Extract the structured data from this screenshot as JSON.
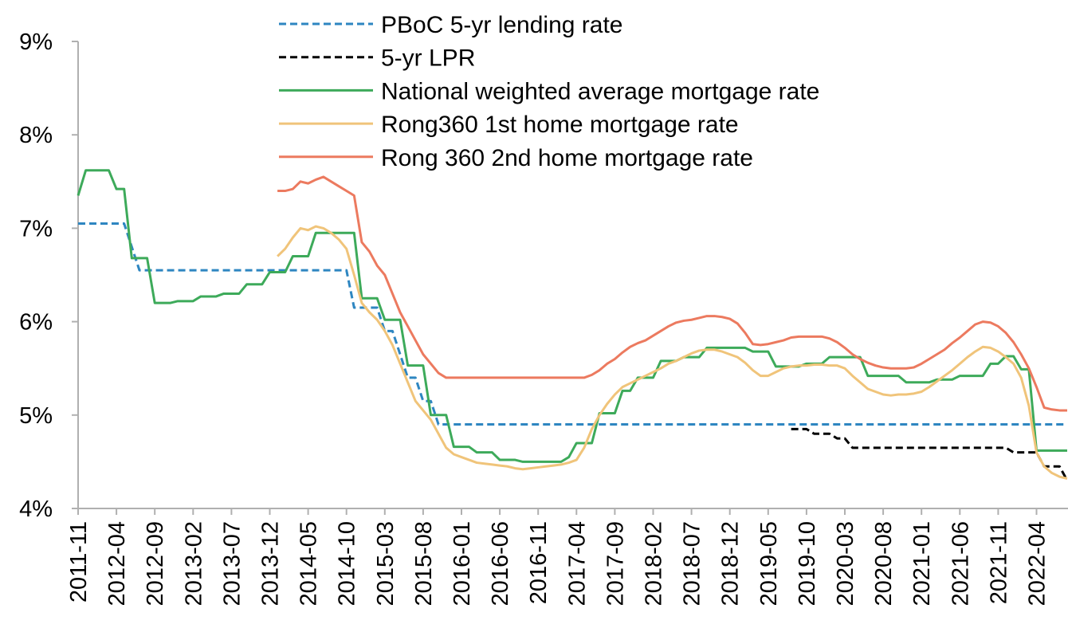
{
  "chart_data": {
    "type": "line",
    "categories": [
      "2011-11",
      null,
      null,
      null,
      null,
      "2012-04",
      null,
      null,
      null,
      null,
      "2012-09",
      null,
      null,
      null,
      null,
      "2013-02",
      null,
      null,
      null,
      null,
      "2013-07",
      null,
      null,
      null,
      null,
      "2013-12",
      null,
      null,
      null,
      null,
      "2014-05",
      null,
      null,
      null,
      null,
      "2014-10",
      null,
      null,
      null,
      null,
      "2015-03",
      null,
      null,
      null,
      null,
      "2015-08",
      null,
      null,
      null,
      null,
      "2016-01",
      null,
      null,
      null,
      null,
      "2016-06",
      null,
      null,
      null,
      null,
      "2016-11",
      null,
      null,
      null,
      null,
      "2017-04",
      null,
      null,
      null,
      null,
      "2017-09",
      null,
      null,
      null,
      null,
      "2018-02",
      null,
      null,
      null,
      null,
      "2018-07",
      null,
      null,
      null,
      null,
      "2018-12",
      null,
      null,
      null,
      null,
      "2019-05",
      null,
      null,
      null,
      null,
      "2019-10",
      null,
      null,
      null,
      null,
      "2020-03",
      null,
      null,
      null,
      null,
      "2020-08",
      null,
      null,
      null,
      null,
      "2021-01",
      null,
      null,
      null,
      null,
      "2021-06",
      null,
      null,
      null,
      null,
      "2021-11",
      null,
      null,
      null,
      null,
      "2022-04",
      null,
      null,
      null,
      null
    ],
    "ylim": [
      4,
      9
    ],
    "yticks": [
      {
        "value": 4,
        "label": "4%"
      },
      {
        "value": 5,
        "label": "5%"
      },
      {
        "value": 6,
        "label": "6%"
      },
      {
        "value": 7,
        "label": "7%"
      },
      {
        "value": 8,
        "label": "8%"
      },
      {
        "value": 9,
        "label": "9%"
      }
    ],
    "series": [
      {
        "name": "PBoC 5-yr lending rate",
        "color": "#2e86c1",
        "dashed": true,
        "values": [
          7.05,
          7.05,
          7.05,
          7.05,
          7.05,
          7.05,
          7.05,
          6.8,
          6.55,
          6.55,
          6.55,
          6.55,
          6.55,
          6.55,
          6.55,
          6.55,
          6.55,
          6.55,
          6.55,
          6.55,
          6.55,
          6.55,
          6.55,
          6.55,
          6.55,
          6.55,
          6.55,
          6.55,
          6.55,
          6.55,
          6.55,
          6.55,
          6.55,
          6.55,
          6.55,
          6.55,
          6.15,
          6.15,
          6.15,
          6.15,
          5.9,
          5.9,
          5.65,
          5.4,
          5.4,
          5.15,
          5.15,
          4.9,
          4.9,
          4.9,
          4.9,
          4.9,
          4.9,
          4.9,
          4.9,
          4.9,
          4.9,
          4.9,
          4.9,
          4.9,
          4.9,
          4.9,
          4.9,
          4.9,
          4.9,
          4.9,
          4.9,
          4.9,
          4.9,
          4.9,
          4.9,
          4.9,
          4.9,
          4.9,
          4.9,
          4.9,
          4.9,
          4.9,
          4.9,
          4.9,
          4.9,
          4.9,
          4.9,
          4.9,
          4.9,
          4.9,
          4.9,
          4.9,
          4.9,
          4.9,
          4.9,
          4.9,
          4.9,
          4.9,
          4.9,
          4.9,
          4.9,
          4.9,
          4.9,
          4.9,
          4.9,
          4.9,
          4.9,
          4.9,
          4.9,
          4.9,
          4.9,
          4.9,
          4.9,
          4.9,
          4.9,
          4.9,
          4.9,
          4.9,
          4.9,
          4.9,
          4.9,
          4.9,
          4.9,
          4.9,
          4.9,
          4.9,
          4.9,
          4.9,
          4.9,
          4.9,
          4.9,
          4.9,
          4.9,
          4.9
        ]
      },
      {
        "name": "5-yr LPR",
        "color": "#000000",
        "dashed": true,
        "values": [
          null,
          null,
          null,
          null,
          null,
          null,
          null,
          null,
          null,
          null,
          null,
          null,
          null,
          null,
          null,
          null,
          null,
          null,
          null,
          null,
          null,
          null,
          null,
          null,
          null,
          null,
          null,
          null,
          null,
          null,
          null,
          null,
          null,
          null,
          null,
          null,
          null,
          null,
          null,
          null,
          null,
          null,
          null,
          null,
          null,
          null,
          null,
          null,
          null,
          null,
          null,
          null,
          null,
          null,
          null,
          null,
          null,
          null,
          null,
          null,
          null,
          null,
          null,
          null,
          null,
          null,
          null,
          null,
          null,
          null,
          null,
          null,
          null,
          null,
          null,
          null,
          null,
          null,
          null,
          null,
          null,
          null,
          null,
          null,
          null,
          null,
          null,
          null,
          null,
          null,
          null,
          null,
          null,
          4.85,
          4.85,
          4.85,
          4.8,
          4.8,
          4.8,
          4.75,
          4.75,
          4.65,
          4.65,
          4.65,
          4.65,
          4.65,
          4.65,
          4.65,
          4.65,
          4.65,
          4.65,
          4.65,
          4.65,
          4.65,
          4.65,
          4.65,
          4.65,
          4.65,
          4.65,
          4.65,
          4.65,
          4.65,
          4.6,
          4.6,
          4.6,
          4.6,
          4.45,
          4.45,
          4.45,
          4.3
        ]
      },
      {
        "name": "National weighted average mortgage rate",
        "color": "#3daa5a",
        "dashed": false,
        "values": [
          7.35,
          7.62,
          7.62,
          7.62,
          7.62,
          7.42,
          7.42,
          6.68,
          6.68,
          6.68,
          6.2,
          6.2,
          6.2,
          6.22,
          6.22,
          6.22,
          6.27,
          6.27,
          6.27,
          6.3,
          6.3,
          6.3,
          6.4,
          6.4,
          6.4,
          6.53,
          6.53,
          6.53,
          6.7,
          6.7,
          6.7,
          6.95,
          6.95,
          6.95,
          6.95,
          6.95,
          6.95,
          6.25,
          6.25,
          6.25,
          6.02,
          6.02,
          6.02,
          5.53,
          5.53,
          5.53,
          5.0,
          5.0,
          5.0,
          4.66,
          4.66,
          4.66,
          4.6,
          4.6,
          4.6,
          4.52,
          4.52,
          4.52,
          4.5,
          4.5,
          4.5,
          4.5,
          4.5,
          4.5,
          4.55,
          4.7,
          4.7,
          4.7,
          5.02,
          5.02,
          5.02,
          5.26,
          5.26,
          5.4,
          5.4,
          5.4,
          5.58,
          5.58,
          5.58,
          5.62,
          5.62,
          5.62,
          5.72,
          5.72,
          5.72,
          5.72,
          5.72,
          5.72,
          5.68,
          5.68,
          5.68,
          5.52,
          5.52,
          5.52,
          5.52,
          5.55,
          5.55,
          5.55,
          5.62,
          5.62,
          5.62,
          5.62,
          5.62,
          5.42,
          5.42,
          5.42,
          5.42,
          5.42,
          5.35,
          5.35,
          5.35,
          5.35,
          5.38,
          5.38,
          5.38,
          5.42,
          5.42,
          5.42,
          5.42,
          5.55,
          5.55,
          5.63,
          5.63,
          5.49,
          5.49,
          4.62,
          4.62,
          4.62,
          4.62,
          4.62
        ]
      },
      {
        "name": "Rong360 1st home mortgage rate",
        "color": "#f0c47a",
        "dashed": false,
        "values": [
          null,
          null,
          null,
          null,
          null,
          null,
          null,
          null,
          null,
          null,
          null,
          null,
          null,
          null,
          null,
          null,
          null,
          null,
          null,
          null,
          null,
          null,
          null,
          null,
          null,
          null,
          6.7,
          6.78,
          6.9,
          7.0,
          6.98,
          7.02,
          7.0,
          6.95,
          6.88,
          6.78,
          6.5,
          6.2,
          6.1,
          6.02,
          5.9,
          5.75,
          5.55,
          5.35,
          5.15,
          5.05,
          4.95,
          4.8,
          4.65,
          4.58,
          4.55,
          4.52,
          4.49,
          4.48,
          4.47,
          4.46,
          4.45,
          4.43,
          4.42,
          4.43,
          4.44,
          4.45,
          4.46,
          4.47,
          4.49,
          4.52,
          4.65,
          4.85,
          5.0,
          5.12,
          5.22,
          5.3,
          5.34,
          5.38,
          5.42,
          5.46,
          5.5,
          5.55,
          5.58,
          5.62,
          5.66,
          5.69,
          5.7,
          5.7,
          5.68,
          5.65,
          5.62,
          5.56,
          5.48,
          5.42,
          5.42,
          5.46,
          5.5,
          5.52,
          5.53,
          5.53,
          5.54,
          5.54,
          5.53,
          5.53,
          5.5,
          5.42,
          5.35,
          5.28,
          5.25,
          5.22,
          5.21,
          5.22,
          5.22,
          5.23,
          5.25,
          5.3,
          5.36,
          5.42,
          5.48,
          5.55,
          5.62,
          5.68,
          5.73,
          5.72,
          5.68,
          5.62,
          5.55,
          5.4,
          5.1,
          4.6,
          4.45,
          4.38,
          4.34,
          4.32
        ]
      },
      {
        "name": "Rong 360 2nd home mortgage rate",
        "color": "#ec7a5f",
        "dashed": false,
        "values": [
          null,
          null,
          null,
          null,
          null,
          null,
          null,
          null,
          null,
          null,
          null,
          null,
          null,
          null,
          null,
          null,
          null,
          null,
          null,
          null,
          null,
          null,
          null,
          null,
          null,
          null,
          7.4,
          7.4,
          7.42,
          7.5,
          7.48,
          7.52,
          7.55,
          7.5,
          7.45,
          7.4,
          7.35,
          6.85,
          6.75,
          6.6,
          6.5,
          6.3,
          6.1,
          5.95,
          5.8,
          5.65,
          5.55,
          5.45,
          5.4,
          5.4,
          5.4,
          5.4,
          5.4,
          5.4,
          5.4,
          5.4,
          5.4,
          5.4,
          5.4,
          5.4,
          5.4,
          5.4,
          5.4,
          5.4,
          5.4,
          5.4,
          5.4,
          5.43,
          5.48,
          5.55,
          5.6,
          5.67,
          5.73,
          5.77,
          5.8,
          5.85,
          5.9,
          5.95,
          5.99,
          6.01,
          6.02,
          6.04,
          6.06,
          6.06,
          6.05,
          6.03,
          5.98,
          5.88,
          5.76,
          5.75,
          5.76,
          5.78,
          5.8,
          5.83,
          5.84,
          5.84,
          5.84,
          5.84,
          5.82,
          5.78,
          5.72,
          5.65,
          5.6,
          5.56,
          5.53,
          5.51,
          5.5,
          5.5,
          5.5,
          5.51,
          5.55,
          5.6,
          5.65,
          5.7,
          5.77,
          5.83,
          5.9,
          5.97,
          6.0,
          5.99,
          5.95,
          5.88,
          5.78,
          5.65,
          5.5,
          5.3,
          5.08,
          5.06,
          5.05,
          5.05
        ]
      }
    ]
  }
}
